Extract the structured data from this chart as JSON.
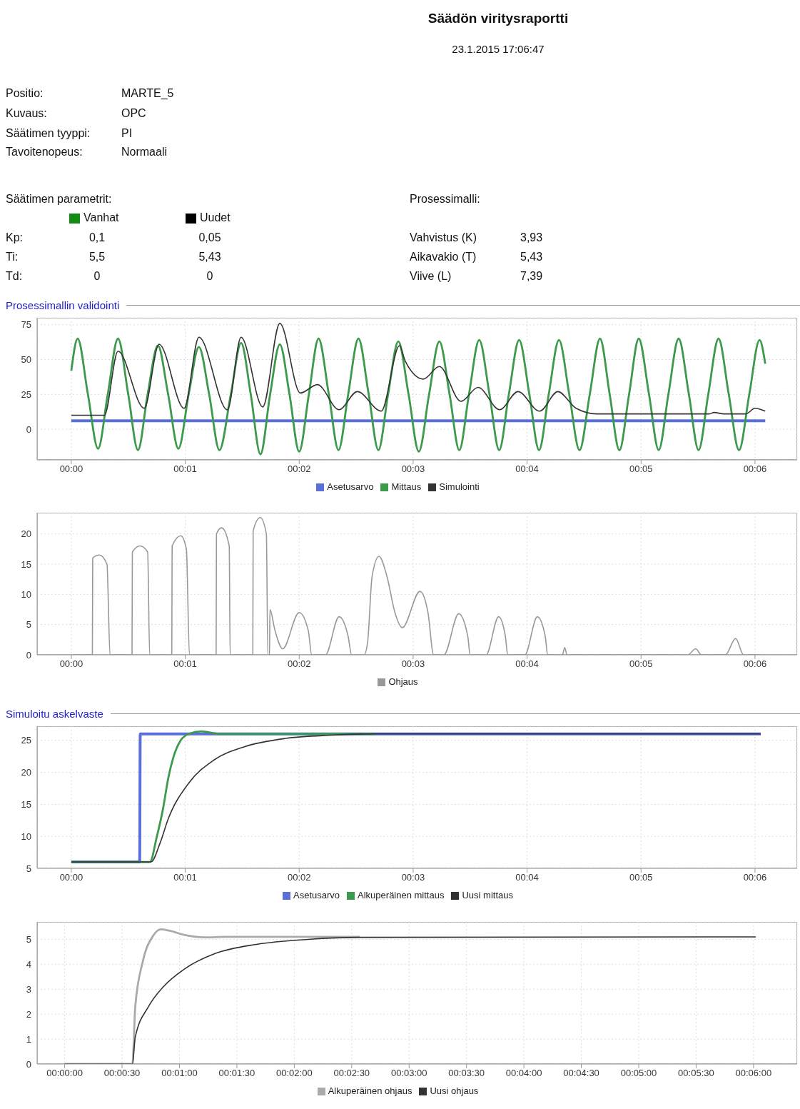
{
  "chart_data": [
    {
      "type": "other",
      "title": "Säädön viritysraportti",
      "subtitle": "23.1.2015 17:06:47",
      "colors": [
        "#138a13",
        "#000000"
      ],
      "annotations": [
        "Positio:",
        "MARTE_5",
        "Kuvaus:",
        "OPC",
        "Säätimen tyyppi:",
        "PI",
        "Tavoitenopeus:",
        "Normaali",
        "Säätimen parametrit:",
        "Vanhat",
        "Uudet",
        "Kp:",
        "0,1",
        "0,05",
        "Ti:",
        "5,5",
        "5,43",
        "Td:",
        "0",
        "0",
        "Prosessimalli:",
        "Vahvistus (K)",
        "3,93",
        "Aikavakio (T)",
        "5,43",
        "Viive (L)",
        "7,39"
      ]
    },
    {
      "type": "line",
      "title": "Prosessimallin validointi",
      "xlim": [
        -0.3,
        6.37
      ],
      "ylim": [
        -22,
        80
      ],
      "yticks": [
        0,
        25,
        50,
        75
      ],
      "grid": true,
      "legend": "bottom",
      "xticks": [
        {
          "value": 0,
          "label": "00:00"
        },
        {
          "value": 1,
          "label": "00:01"
        },
        {
          "value": 2,
          "label": "00:02"
        },
        {
          "value": 3,
          "label": "00:03"
        },
        {
          "value": 4,
          "label": "00:04"
        },
        {
          "value": 5,
          "label": "00:05"
        },
        {
          "value": 6,
          "label": "00:06"
        }
      ],
      "series": [
        {
          "name": "Asetusarvo",
          "color": "#5b6fd8",
          "x": [
            0,
            6.09
          ],
          "values": [
            6,
            6
          ]
        },
        {
          "name": "Mittaus",
          "color": "#3c9a4c",
          "x": [
            0,
            0.056,
            0.146,
            0.235,
            0.32,
            0.41,
            0.5,
            0.585,
            0.67,
            0.76,
            0.85,
            0.94,
            1.03,
            1.12,
            1.21,
            1.3,
            1.4,
            1.49,
            1.575,
            1.66,
            1.745,
            1.83,
            1.915,
            2.0,
            2.085,
            2.17,
            2.26,
            2.345,
            2.43,
            2.52,
            2.61,
            2.695,
            2.78,
            2.87,
            2.96,
            3.05,
            3.14,
            3.23,
            3.32,
            3.405,
            3.49,
            3.58,
            3.67,
            3.755,
            3.84,
            3.93,
            4.02,
            4.105,
            4.19,
            4.28,
            4.37,
            4.46,
            4.55,
            4.64,
            4.725,
            4.81,
            4.895,
            4.98,
            5.07,
            5.155,
            5.24,
            5.33,
            5.42,
            5.505,
            5.59,
            5.68,
            5.77,
            5.86,
            5.95,
            6.04,
            6.09
          ],
          "values": [
            42,
            65,
            25,
            -14,
            25,
            65,
            25,
            -15,
            25,
            60,
            25,
            -14,
            25,
            59,
            25,
            -15,
            25,
            62,
            25,
            -18,
            25,
            61,
            25,
            -16,
            25,
            65,
            25,
            -15,
            25,
            65,
            25,
            -15,
            25,
            63,
            25,
            -16,
            25,
            63,
            25,
            -15,
            25,
            64,
            25,
            -15,
            25,
            64,
            25,
            -15,
            25,
            64,
            25,
            -15,
            25,
            65,
            25,
            -15,
            25,
            65,
            25,
            -15,
            25,
            65,
            25,
            -15,
            25,
            65,
            25,
            -15,
            25,
            64,
            47
          ]
        },
        {
          "name": "Simulointi",
          "color": "#333333",
          "x": [
            0,
            0.29,
            0.41,
            0.64,
            0.77,
            0.99,
            1.12,
            1.37,
            1.49,
            1.68,
            1.83,
            2.01,
            2.16,
            2.35,
            2.51,
            2.72,
            2.88,
            2.93,
            3.09,
            3.23,
            3.42,
            3.57,
            3.76,
            3.92,
            4.11,
            4.27,
            4.43,
            4.61,
            5.6,
            5.64,
            5.73,
            5.92,
            6.0,
            6.09
          ],
          "values": [
            10,
            10,
            56,
            15,
            61,
            15,
            66,
            14,
            66,
            16,
            76,
            26,
            32,
            14,
            27,
            13,
            60,
            49,
            36,
            45,
            20,
            30,
            14,
            27,
            13,
            27,
            15,
            11,
            11,
            12,
            11,
            11,
            15,
            13
          ]
        }
      ]
    },
    {
      "type": "line",
      "xlim": [
        -0.3,
        6.37
      ],
      "ylim": [
        0,
        23.5
      ],
      "yticks": [
        0,
        5,
        10,
        15,
        20
      ],
      "grid": true,
      "legend": "bottom",
      "xticks": [
        {
          "value": 0,
          "label": "00:00"
        },
        {
          "value": 1,
          "label": "00:01"
        },
        {
          "value": 2,
          "label": "00:02"
        },
        {
          "value": 3,
          "label": "00:03"
        },
        {
          "value": 4,
          "label": "00:04"
        },
        {
          "value": 5,
          "label": "00:05"
        },
        {
          "value": 6,
          "label": "00:06"
        }
      ],
      "series": [
        {
          "name": "Ohjaus",
          "color": "#999999",
          "x": [
            0,
            0.185,
            0.188,
            0.246,
            0.313,
            0.34,
            0.533,
            0.536,
            0.603,
            0.67,
            0.688,
            0.882,
            0.885,
            0.961,
            1.01,
            1.037,
            1.271,
            1.274,
            1.319,
            1.386,
            1.394,
            1.593,
            1.596,
            1.658,
            1.712,
            1.725,
            1.74,
            1.743,
            1.788,
            1.855,
            2.0,
            2.08,
            2.11,
            2.23,
            2.35,
            2.43,
            2.46,
            2.57,
            2.6,
            2.64,
            2.7,
            2.77,
            2.84,
            2.905,
            3.06,
            3.13,
            3.18,
            3.27,
            3.4,
            3.48,
            3.5,
            3.64,
            3.75,
            3.81,
            3.83,
            3.98,
            4.09,
            4.16,
            4.18,
            4.31,
            4.33,
            4.35,
            5.41,
            5.48,
            5.53,
            5.74,
            5.83,
            5.9,
            6.05
          ],
          "values": [
            0,
            0,
            16,
            16.5,
            15,
            0,
            0,
            17,
            18,
            17,
            0,
            0,
            18,
            19.7,
            17.5,
            0,
            0,
            20,
            21,
            18,
            0,
            0,
            20.5,
            22.7,
            20,
            0,
            0,
            7.5,
            4,
            1,
            7,
            4,
            0,
            0,
            6.3,
            3,
            0,
            0,
            2,
            13,
            16.3,
            13,
            7,
            4.5,
            10.5,
            7,
            0,
            0,
            6.8,
            3,
            0,
            0,
            6.3,
            3,
            0,
            0,
            6.3,
            3,
            0,
            0,
            1.2,
            0,
            0,
            1,
            0,
            0,
            2.7,
            0,
            0
          ]
        }
      ]
    },
    {
      "type": "line",
      "title": "Simuloitu askelvaste",
      "xlim": [
        -0.3,
        6.37
      ],
      "ylim": [
        5,
        27.2
      ],
      "yticks": [
        5,
        10,
        15,
        20,
        25
      ],
      "grid": true,
      "legend": "bottom",
      "xticks": [
        {
          "value": 0,
          "label": "00:00"
        },
        {
          "value": 1,
          "label": "00:01"
        },
        {
          "value": 2,
          "label": "00:02"
        },
        {
          "value": 3,
          "label": "00:03"
        },
        {
          "value": 4,
          "label": "00:04"
        },
        {
          "value": 5,
          "label": "00:05"
        },
        {
          "value": 6,
          "label": "00:06"
        }
      ],
      "series": [
        {
          "name": "Asetusarvo",
          "color": "#5b6fd8",
          "x": [
            0,
            0.6,
            0.605,
            6.05
          ],
          "values": [
            6,
            6,
            26,
            26
          ]
        },
        {
          "name": "Alkuperäinen mittaus",
          "color": "#3c9a4c",
          "x": [
            0,
            0.69,
            0.75,
            0.805,
            0.85,
            0.895,
            0.96,
            1.03,
            1.14,
            1.3,
            2.66
          ],
          "values": [
            6,
            6,
            9.9,
            14.3,
            19,
            22.3,
            25,
            26,
            26.4,
            26,
            26
          ]
        },
        {
          "name": "Uusi mittaus",
          "color": "#333333",
          "x": [
            0,
            0.7,
            0.78,
            0.85,
            1.03,
            1.25,
            1.52,
            1.88,
            2.28,
            2.66,
            6.05
          ],
          "values": [
            6,
            6,
            9,
            12.7,
            18.3,
            21.9,
            24,
            25.3,
            25.8,
            26,
            26
          ]
        }
      ]
    },
    {
      "type": "line",
      "xlim": [
        -0.24,
        6.38
      ],
      "ylim": [
        0,
        5.7
      ],
      "yticks": [
        0,
        1,
        2,
        3,
        4,
        5
      ],
      "grid": true,
      "legend": "bottom",
      "xticks": [
        {
          "value": 0,
          "label": "00:00:00"
        },
        {
          "value": 0.5,
          "label": "00:00:30"
        },
        {
          "value": 1,
          "label": "00:01:00"
        },
        {
          "value": 1.5,
          "label": "00:01:30"
        },
        {
          "value": 2,
          "label": "00:02:00"
        },
        {
          "value": 2.5,
          "label": "00:02:30"
        },
        {
          "value": 3,
          "label": "00:03:00"
        },
        {
          "value": 3.5,
          "label": "00:03:30"
        },
        {
          "value": 4,
          "label": "00:04:00"
        },
        {
          "value": 4.5,
          "label": "00:04:30"
        },
        {
          "value": 5,
          "label": "00:05:00"
        },
        {
          "value": 5.5,
          "label": "00:05:30"
        },
        {
          "value": 6,
          "label": "00:06:00"
        }
      ],
      "series": [
        {
          "name": "Alkuperäinen ohjaus",
          "color": "#aaaaaa",
          "x": [
            0,
            0.59,
            0.615,
            0.68,
            0.77,
            0.84,
            0.91,
            1.04,
            1.22,
            1.4,
            2.57
          ],
          "values": [
            0,
            0,
            2.3,
            4.1,
            5.14,
            5.4,
            5.35,
            5.18,
            5.08,
            5.1,
            5.1
          ]
        },
        {
          "name": "Uusi ohjaus",
          "color": "#333333",
          "x": [
            0,
            0.59,
            0.615,
            0.73,
            0.86,
            1.04,
            1.31,
            1.67,
            2.12,
            2.57,
            6.02
          ],
          "values": [
            0,
            0,
            1.08,
            2.3,
            3.1,
            3.8,
            4.43,
            4.8,
            5.0,
            5.08,
            5.1
          ]
        }
      ]
    }
  ]
}
